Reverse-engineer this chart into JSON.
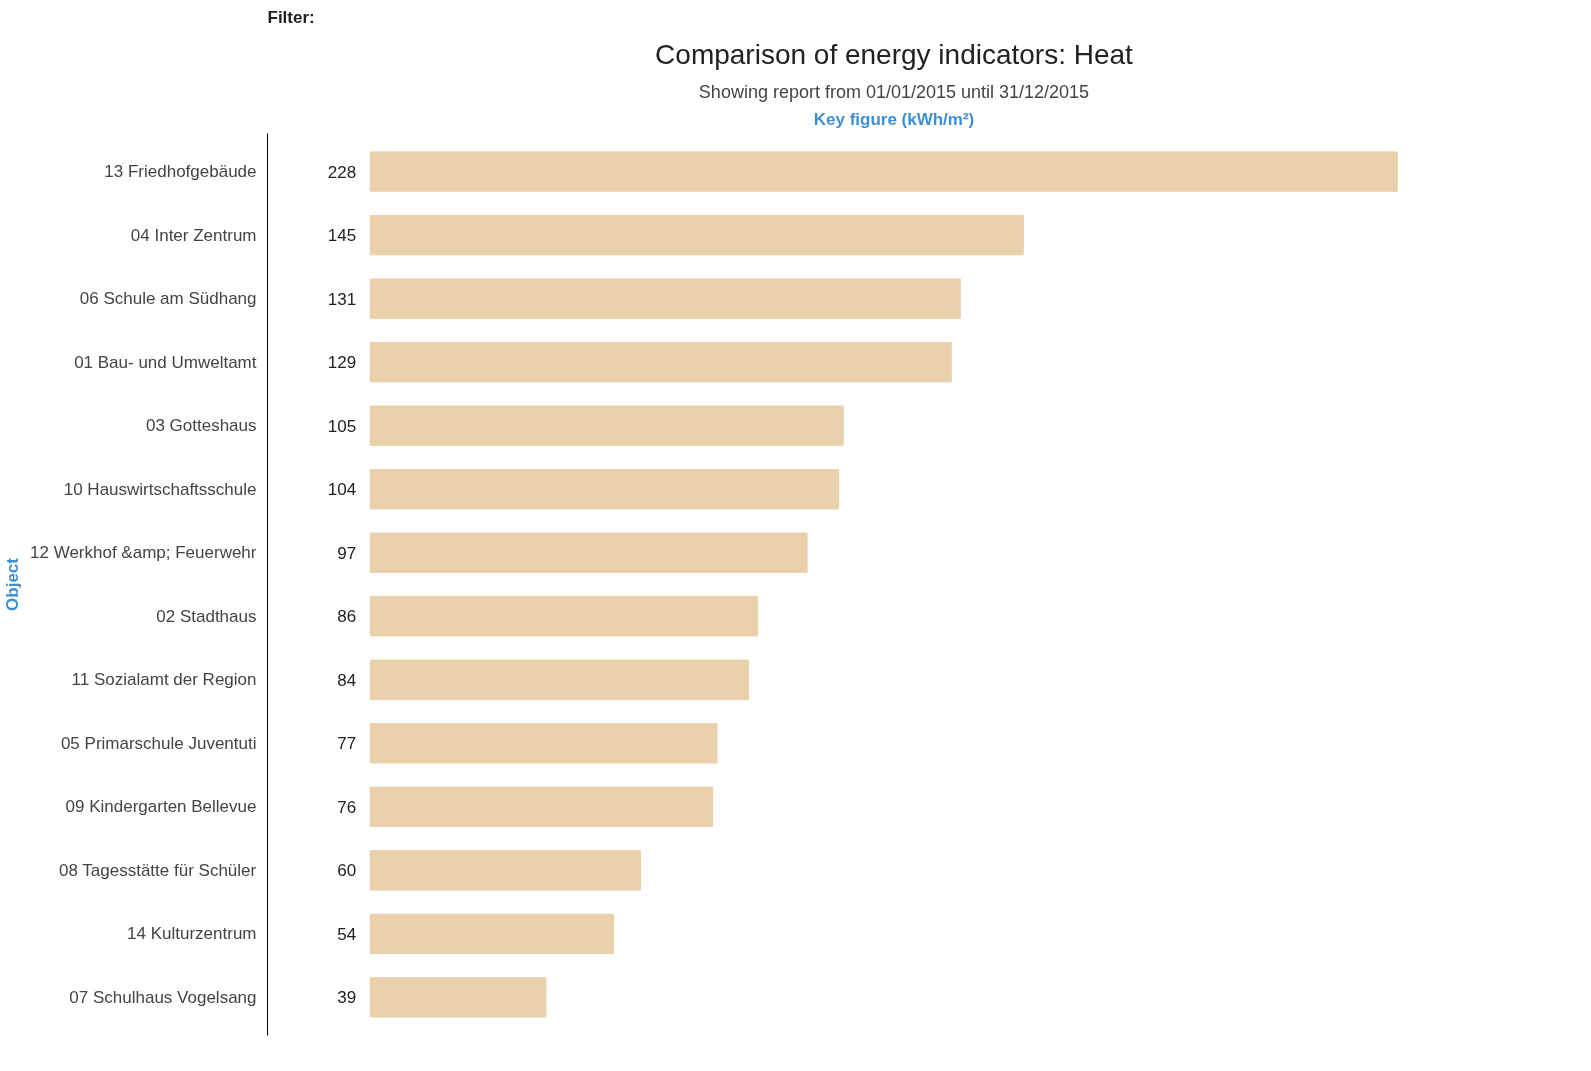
{
  "chart_data": {
    "type": "bar",
    "orientation": "horizontal",
    "title": "Comparison of energy indicators: Heat",
    "subtitle": "Showing report from 01/01/2015 until 31/12/2015",
    "xlabel": "Key figure (kWh/m²)",
    "ylabel": "Object",
    "annotations": [
      "Filter:"
    ],
    "categories": [
      "13 Friedhofgebäude",
      "04 Inter Zentrum",
      "06 Schule am Südhang",
      "01 Bau- und Umweltamt",
      "03 Gotteshaus",
      "10 Hauswirtschaftsschule",
      "12 Werkhof &amp; Feuerwehr",
      "02 Stadthaus",
      "11 Sozialamt der Region",
      "05 Primarschule Juventuti",
      "09 Kindergarten Bellevue",
      "08 Tagesstätte für Schüler",
      "14 Kulturzentrum",
      "07 Schulhaus Vogelsang"
    ],
    "values": [
      228,
      145,
      131,
      129,
      105,
      104,
      97,
      86,
      84,
      77,
      76,
      60,
      54,
      39
    ],
    "color": "#ead1ab",
    "data_labels": true,
    "tick_labels": "y",
    "grid": false
  }
}
